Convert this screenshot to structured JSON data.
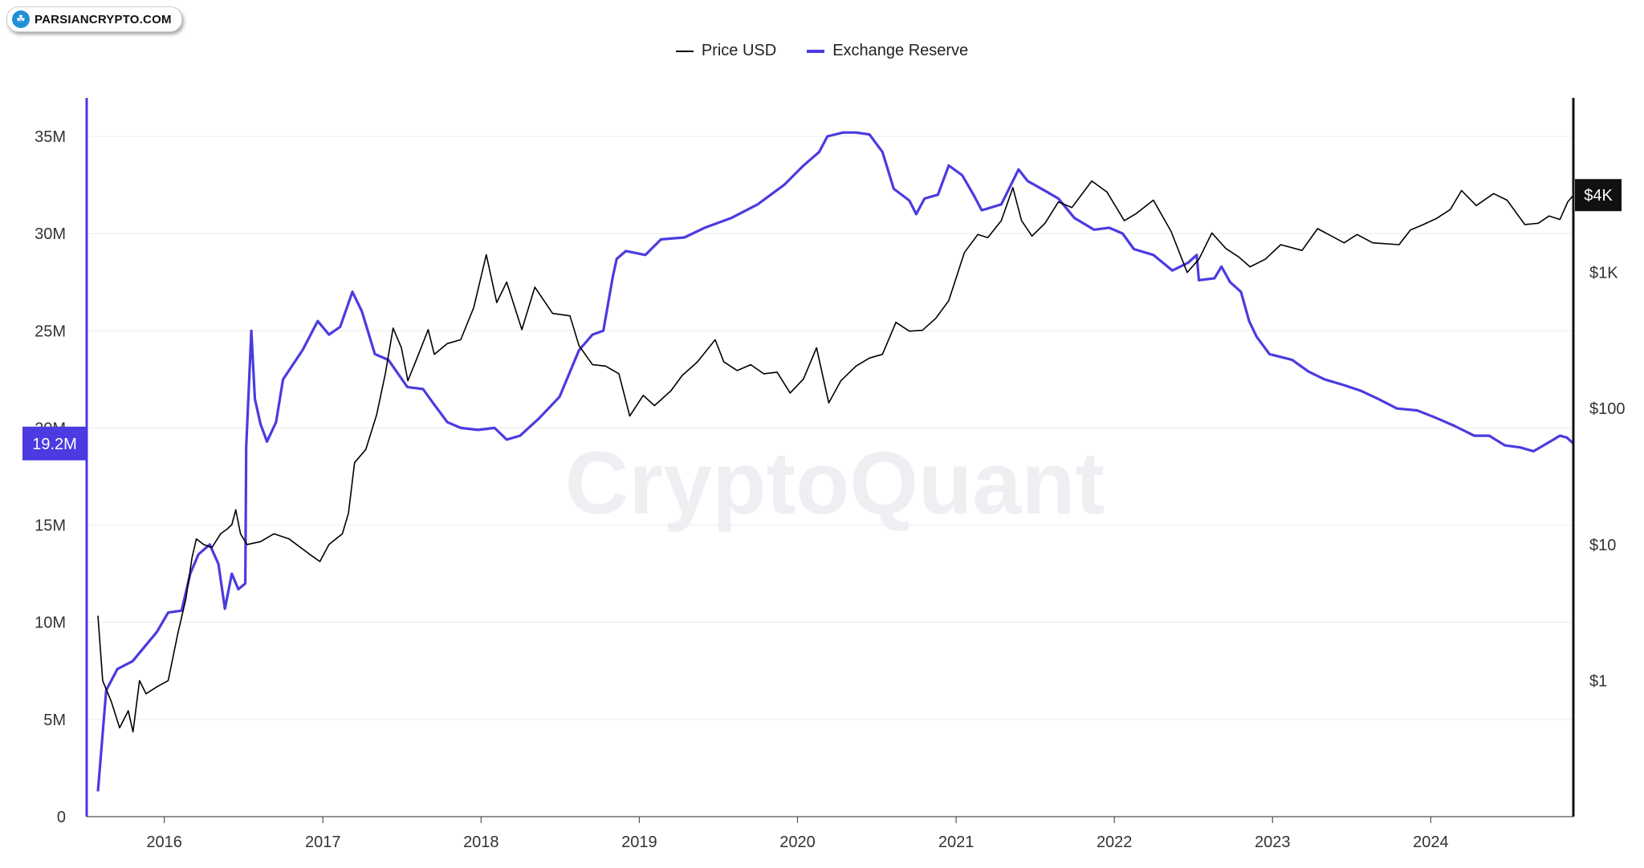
{
  "watermark_badge": {
    "text": "PARSIANCRYPTO.COM",
    "icon": "tree-logo-icon"
  },
  "watermark": "CryptoQuant",
  "legend": [
    {
      "label": "Price USD",
      "color": "#000000"
    },
    {
      "label": "Exchange Reserve",
      "color": "#4b3be0"
    }
  ],
  "chart_data": {
    "type": "line",
    "title": "",
    "x_ticks": [
      "2016",
      "2017",
      "2018",
      "2019",
      "2020",
      "2021",
      "2022",
      "2023",
      "2024"
    ],
    "left_axis": {
      "ticks": [
        "0",
        "5M",
        "10M",
        "15M",
        "20M",
        "25M",
        "30M",
        "35M"
      ],
      "ylim": [
        0,
        35000000
      ]
    },
    "right_axis": {
      "scale": "log",
      "ticks": [
        "$1",
        "$10",
        "$100",
        "$1K"
      ],
      "ylim": [
        0.1,
        10000
      ]
    },
    "current_value_labels": {
      "left": "19.2M",
      "right": "$4K"
    },
    "grid": true,
    "legend_position": "top-center",
    "series": [
      {
        "name": "Exchange Reserve",
        "axis": "left",
        "color": "#4b3be0",
        "points": [
          [
            "2015-08-01",
            1300000
          ],
          [
            "2015-08-20",
            6500000
          ],
          [
            "2015-09-15",
            7600000
          ],
          [
            "2015-10-20",
            8000000
          ],
          [
            "2015-12-15",
            9500000
          ],
          [
            "2016-01-10",
            10500000
          ],
          [
            "2016-02-10",
            10600000
          ],
          [
            "2016-03-01",
            12500000
          ],
          [
            "2016-03-20",
            13500000
          ],
          [
            "2016-04-15",
            14000000
          ],
          [
            "2016-05-05",
            13000000
          ],
          [
            "2016-05-20",
            10700000
          ],
          [
            "2016-06-05",
            12500000
          ],
          [
            "2016-06-20",
            11700000
          ],
          [
            "2016-07-06",
            12000000
          ],
          [
            "2016-07-08",
            19000000
          ],
          [
            "2016-07-20",
            25000000
          ],
          [
            "2016-07-28",
            21500000
          ],
          [
            "2016-08-10",
            20200000
          ],
          [
            "2016-08-25",
            19300000
          ],
          [
            "2016-09-15",
            20300000
          ],
          [
            "2016-10-01",
            22500000
          ],
          [
            "2016-11-15",
            24000000
          ],
          [
            "2016-12-20",
            25500000
          ],
          [
            "2017-01-15",
            24800000
          ],
          [
            "2017-02-10",
            25200000
          ],
          [
            "2017-03-10",
            27000000
          ],
          [
            "2017-04-01",
            26000000
          ],
          [
            "2017-05-01",
            23800000
          ],
          [
            "2017-06-01",
            23500000
          ],
          [
            "2017-07-15",
            22100000
          ],
          [
            "2017-08-20",
            22000000
          ],
          [
            "2017-09-15",
            21200000
          ],
          [
            "2017-10-15",
            20300000
          ],
          [
            "2017-11-15",
            20000000
          ],
          [
            "2017-12-25",
            19900000
          ],
          [
            "2018-02-01",
            20000000
          ],
          [
            "2018-03-01",
            19400000
          ],
          [
            "2018-04-01",
            19600000
          ],
          [
            "2018-05-15",
            20500000
          ],
          [
            "2018-07-01",
            21600000
          ],
          [
            "2018-08-15",
            24000000
          ],
          [
            "2018-09-15",
            24800000
          ],
          [
            "2018-10-10",
            25000000
          ],
          [
            "2018-11-01",
            27800000
          ],
          [
            "2018-11-10",
            28700000
          ],
          [
            "2018-12-01",
            29100000
          ],
          [
            "2019-01-15",
            28900000
          ],
          [
            "2019-02-20",
            29700000
          ],
          [
            "2019-04-15",
            29800000
          ],
          [
            "2019-06-01",
            30300000
          ],
          [
            "2019-08-01",
            30800000
          ],
          [
            "2019-10-01",
            31500000
          ],
          [
            "2019-12-01",
            32500000
          ],
          [
            "2020-01-15",
            33500000
          ],
          [
            "2020-02-20",
            34200000
          ],
          [
            "2020-03-10",
            35000000
          ],
          [
            "2020-04-15",
            35200000
          ],
          [
            "2020-05-15",
            35200000
          ],
          [
            "2020-06-15",
            35100000
          ],
          [
            "2020-07-15",
            34200000
          ],
          [
            "2020-08-10",
            32300000
          ],
          [
            "2020-09-15",
            31700000
          ],
          [
            "2020-10-01",
            31000000
          ],
          [
            "2020-10-20",
            31800000
          ],
          [
            "2020-11-20",
            32000000
          ],
          [
            "2020-12-15",
            33500000
          ],
          [
            "2021-01-15",
            33000000
          ],
          [
            "2021-02-10",
            32000000
          ],
          [
            "2021-03-01",
            31200000
          ],
          [
            "2021-04-15",
            31500000
          ],
          [
            "2021-05-25",
            33300000
          ],
          [
            "2021-06-15",
            32700000
          ],
          [
            "2021-07-25",
            32200000
          ],
          [
            "2021-08-25",
            31800000
          ],
          [
            "2021-10-01",
            30800000
          ],
          [
            "2021-11-15",
            30200000
          ],
          [
            "2021-12-20",
            30300000
          ],
          [
            "2022-01-20",
            30000000
          ],
          [
            "2022-02-15",
            29200000
          ],
          [
            "2022-04-01",
            28900000
          ],
          [
            "2022-05-15",
            28100000
          ],
          [
            "2022-06-20",
            28500000
          ],
          [
            "2022-07-10",
            28900000
          ],
          [
            "2022-07-15",
            27600000
          ],
          [
            "2022-08-20",
            27700000
          ],
          [
            "2022-09-05",
            28300000
          ],
          [
            "2022-09-25",
            27500000
          ],
          [
            "2022-10-20",
            27000000
          ],
          [
            "2022-11-08",
            25500000
          ],
          [
            "2022-11-25",
            24700000
          ],
          [
            "2022-12-25",
            23800000
          ],
          [
            "2023-02-15",
            23500000
          ],
          [
            "2023-03-25",
            22900000
          ],
          [
            "2023-05-01",
            22500000
          ],
          [
            "2023-06-15",
            22200000
          ],
          [
            "2023-07-25",
            21900000
          ],
          [
            "2023-09-01",
            21500000
          ],
          [
            "2023-10-15",
            21000000
          ],
          [
            "2023-12-01",
            20900000
          ],
          [
            "2024-01-15",
            20500000
          ],
          [
            "2024-02-25",
            20100000
          ],
          [
            "2024-04-10",
            19600000
          ],
          [
            "2024-05-15",
            19600000
          ],
          [
            "2024-06-20",
            19100000
          ],
          [
            "2024-07-25",
            19000000
          ],
          [
            "2024-08-25",
            18800000
          ],
          [
            "2024-09-25",
            19200000
          ],
          [
            "2024-10-25",
            19600000
          ],
          [
            "2024-11-10",
            19500000
          ],
          [
            "2024-11-25",
            19200000
          ]
        ]
      },
      {
        "name": "Price USD",
        "axis": "right",
        "color": "#000000",
        "points": [
          [
            "2015-08-01",
            3
          ],
          [
            "2015-08-12",
            1.0
          ],
          [
            "2015-09-01",
            0.7
          ],
          [
            "2015-09-20",
            0.45
          ],
          [
            "2015-10-10",
            0.6
          ],
          [
            "2015-10-21",
            0.42
          ],
          [
            "2015-11-05",
            1.0
          ],
          [
            "2015-11-20",
            0.8
          ],
          [
            "2015-12-15",
            0.9
          ],
          [
            "2016-01-10",
            1.0
          ],
          [
            "2016-02-01",
            2.2
          ],
          [
            "2016-02-20",
            4.0
          ],
          [
            "2016-03-05",
            8.0
          ],
          [
            "2016-03-15",
            11.0
          ],
          [
            "2016-04-01",
            10.0
          ],
          [
            "2016-04-20",
            9.5
          ],
          [
            "2016-05-10",
            12.0
          ],
          [
            "2016-05-25",
            13.0
          ],
          [
            "2016-06-05",
            14.0
          ],
          [
            "2016-06-14",
            18.0
          ],
          [
            "2016-06-25",
            12.0
          ],
          [
            "2016-07-10",
            10.0
          ],
          [
            "2016-08-10",
            10.5
          ],
          [
            "2016-09-10",
            12.0
          ],
          [
            "2016-10-15",
            11.0
          ],
          [
            "2016-12-01",
            8.5
          ],
          [
            "2016-12-25",
            7.5
          ],
          [
            "2017-01-15",
            10.0
          ],
          [
            "2017-02-15",
            12.0
          ],
          [
            "2017-03-01",
            17.0
          ],
          [
            "2017-03-15",
            40.0
          ],
          [
            "2017-04-10",
            50.0
          ],
          [
            "2017-05-05",
            90.0
          ],
          [
            "2017-05-25",
            180.0
          ],
          [
            "2017-06-12",
            390.0
          ],
          [
            "2017-07-01",
            280.0
          ],
          [
            "2017-07-16",
            160.0
          ],
          [
            "2017-08-05",
            230.0
          ],
          [
            "2017-09-01",
            380.0
          ],
          [
            "2017-09-15",
            250.0
          ],
          [
            "2017-10-15",
            300.0
          ],
          [
            "2017-11-15",
            320.0
          ],
          [
            "2017-12-15",
            550.0
          ],
          [
            "2018-01-13",
            1350.0
          ],
          [
            "2018-02-06",
            600.0
          ],
          [
            "2018-03-01",
            850.0
          ],
          [
            "2018-04-05",
            380.0
          ],
          [
            "2018-05-05",
            780.0
          ],
          [
            "2018-06-15",
            500.0
          ],
          [
            "2018-07-25",
            480.0
          ],
          [
            "2018-08-15",
            290.0
          ],
          [
            "2018-09-15",
            210.0
          ],
          [
            "2018-10-15",
            205.0
          ],
          [
            "2018-11-15",
            180.0
          ],
          [
            "2018-12-10",
            88.0
          ],
          [
            "2019-01-10",
            125.0
          ],
          [
            "2019-02-05",
            105.0
          ],
          [
            "2019-03-15",
            135.0
          ],
          [
            "2019-04-10",
            175.0
          ],
          [
            "2019-05-15",
            220.0
          ],
          [
            "2019-06-25",
            320.0
          ],
          [
            "2019-07-15",
            220.0
          ],
          [
            "2019-08-15",
            190.0
          ],
          [
            "2019-09-15",
            210.0
          ],
          [
            "2019-10-15",
            180.0
          ],
          [
            "2019-11-15",
            185.0
          ],
          [
            "2019-12-15",
            130.0
          ],
          [
            "2020-01-15",
            165.0
          ],
          [
            "2020-02-14",
            280.0
          ],
          [
            "2020-03-13",
            110.0
          ],
          [
            "2020-04-10",
            160.0
          ],
          [
            "2020-05-15",
            205.0
          ],
          [
            "2020-06-15",
            235.0
          ],
          [
            "2020-07-15",
            250.0
          ],
          [
            "2020-08-15",
            430.0
          ],
          [
            "2020-09-15",
            370.0
          ],
          [
            "2020-10-15",
            375.0
          ],
          [
            "2020-11-15",
            460.0
          ],
          [
            "2020-12-15",
            620.0
          ],
          [
            "2021-01-20",
            1400.0
          ],
          [
            "2021-02-20",
            1900.0
          ],
          [
            "2021-03-15",
            1800.0
          ],
          [
            "2021-04-15",
            2400.0
          ],
          [
            "2021-05-12",
            4200.0
          ],
          [
            "2021-06-01",
            2400.0
          ],
          [
            "2021-06-25",
            1850.0
          ],
          [
            "2021-07-25",
            2300.0
          ],
          [
            "2021-08-25",
            3300.0
          ],
          [
            "2021-09-25",
            3000.0
          ],
          [
            "2021-11-10",
            4700.0
          ],
          [
            "2021-12-15",
            3900.0
          ],
          [
            "2022-01-24",
            2400.0
          ],
          [
            "2022-02-20",
            2700.0
          ],
          [
            "2022-04-01",
            3400.0
          ],
          [
            "2022-05-12",
            2000.0
          ],
          [
            "2022-06-18",
            1000.0
          ],
          [
            "2022-07-15",
            1250.0
          ],
          [
            "2022-08-14",
            1950.0
          ],
          [
            "2022-09-15",
            1500.0
          ],
          [
            "2022-10-15",
            1300.0
          ],
          [
            "2022-11-10",
            1100.0
          ],
          [
            "2022-12-15",
            1250.0
          ],
          [
            "2023-01-20",
            1600.0
          ],
          [
            "2023-03-10",
            1450.0
          ],
          [
            "2023-04-15",
            2100.0
          ],
          [
            "2023-06-15",
            1650.0
          ],
          [
            "2023-07-15",
            1900.0
          ],
          [
            "2023-08-20",
            1650.0
          ],
          [
            "2023-10-20",
            1600.0
          ],
          [
            "2023-11-15",
            2050.0
          ],
          [
            "2023-12-15",
            2250.0
          ],
          [
            "2024-01-15",
            2500.0
          ],
          [
            "2024-02-15",
            2900.0
          ],
          [
            "2024-03-12",
            4000.0
          ],
          [
            "2024-04-15",
            3100.0
          ],
          [
            "2024-05-25",
            3800.0
          ],
          [
            "2024-06-25",
            3400.0
          ],
          [
            "2024-08-05",
            2250.0
          ],
          [
            "2024-09-05",
            2300.0
          ],
          [
            "2024-09-30",
            2600.0
          ],
          [
            "2024-10-25",
            2450.0
          ],
          [
            "2024-11-12",
            3300.0
          ],
          [
            "2024-11-25",
            3700.0
          ]
        ]
      }
    ]
  }
}
